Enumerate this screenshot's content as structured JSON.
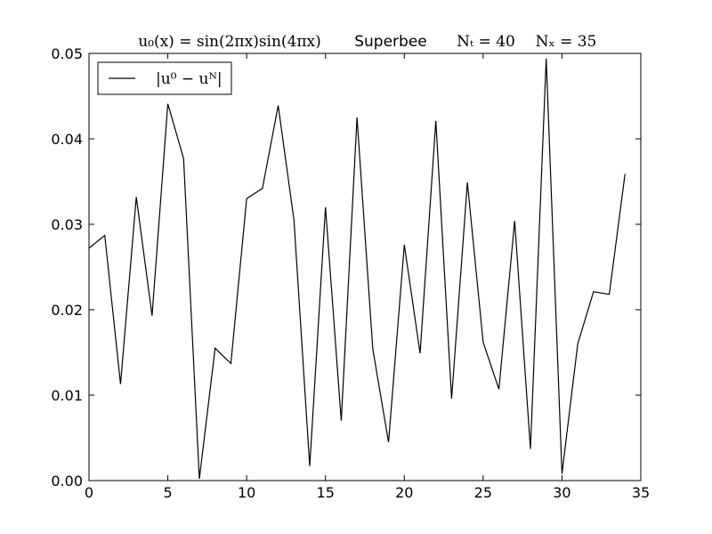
{
  "chart_data": {
    "type": "line",
    "title_parts": {
      "initial_condition": "u₀(x) = sin(2πx)sin(4πx)",
      "scheme": "Superbee",
      "nt": "Nₜ = 40",
      "nx": "Nₓ = 35"
    },
    "xlabel": "",
    "ylabel": "",
    "xlim": [
      0,
      35
    ],
    "ylim": [
      0,
      0.05
    ],
    "x_ticks": [
      0,
      5,
      10,
      15,
      20,
      25,
      30,
      35
    ],
    "x_tick_labels": [
      "0",
      "5",
      "10",
      "15",
      "20",
      "25",
      "30",
      "35"
    ],
    "y_ticks": [
      0,
      0.01,
      0.02,
      0.03,
      0.04,
      0.05
    ],
    "y_tick_labels": [
      "0.00",
      "0.01",
      "0.02",
      "0.03",
      "0.04",
      "0.05"
    ],
    "grid": false,
    "legend_position": "top-left",
    "series": [
      {
        "name": "|u⁰ − uᴺ|",
        "color": "#000000",
        "x": [
          0,
          1,
          2,
          3,
          4,
          5,
          6,
          7,
          8,
          9,
          10,
          11,
          12,
          13,
          14,
          15,
          16,
          17,
          18,
          19,
          20,
          21,
          22,
          23,
          24,
          25,
          26,
          27,
          28,
          29,
          30,
          31,
          32,
          33,
          34
        ],
        "values": [
          0.0272,
          0.0287,
          0.0113,
          0.0332,
          0.0193,
          0.0441,
          0.0377,
          0.0002,
          0.0155,
          0.0137,
          0.033,
          0.0342,
          0.0439,
          0.0305,
          0.0017,
          0.032,
          0.007,
          0.0425,
          0.0154,
          0.0045,
          0.0276,
          0.0149,
          0.0421,
          0.0096,
          0.0349,
          0.0162,
          0.0107,
          0.0304,
          0.0037,
          0.0494,
          0.0008,
          0.016,
          0.0221,
          0.0218,
          0.0359
        ]
      }
    ]
  }
}
